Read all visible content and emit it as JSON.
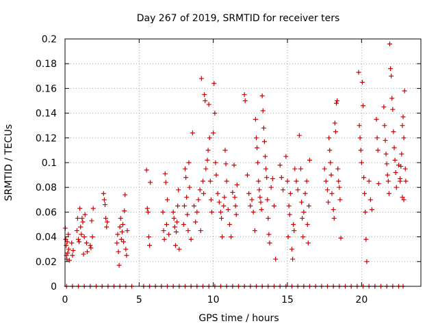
{
  "chart_data": {
    "type": "scatter",
    "title": "Day 267 of 2019, SRMTID for receiver ters",
    "xlabel": "GPS time / hours",
    "ylabel": "SRMTID / TECUs",
    "xlim": [
      0,
      24
    ],
    "ylim": [
      0,
      0.2
    ],
    "x_ticks": [
      0,
      5,
      10,
      15,
      20
    ],
    "x_tick_labels": [
      "0",
      "5",
      "10",
      "15",
      "20"
    ],
    "y_ticks": [
      0,
      0.02,
      0.04,
      0.06,
      0.08,
      0.1,
      0.12,
      0.14,
      0.16,
      0.18,
      0.2
    ],
    "y_tick_labels": [
      "0",
      "0.02",
      "0.04",
      "0.06",
      "0.08",
      "0.1",
      "0.12",
      "0.14",
      "0.16",
      "0.18",
      "0.2"
    ],
    "grid": true,
    "grid_style": "dotted",
    "marker": "+",
    "marker_color": "#cc0000",
    "series": [
      {
        "points": [
          [
            0.02,
            0.047
          ],
          [
            0.05,
            0.038
          ],
          [
            0.08,
            0.033
          ],
          [
            0.1,
            0.025
          ],
          [
            0.12,
            0.022
          ],
          [
            0.15,
            0.036
          ],
          [
            0.18,
            0.027
          ],
          [
            0.22,
            0.042
          ],
          [
            0.25,
            0.03
          ],
          [
            0.3,
            0.021
          ],
          [
            0.45,
            0.035
          ],
          [
            0.5,
            0.025
          ],
          [
            0.55,
            0.029
          ],
          [
            0.8,
            0.045
          ],
          [
            0.85,
            0.055
          ],
          [
            0.9,
            0.038
          ],
          [
            0.95,
            0.036
          ],
          [
            1.0,
            0.063
          ],
          [
            1.05,
            0.048
          ],
          [
            1.1,
            0.042
          ],
          [
            1.15,
            0.055
          ],
          [
            1.2,
            0.052
          ],
          [
            1.25,
            0.026
          ],
          [
            1.3,
            0.04
          ],
          [
            1.35,
            0.058
          ],
          [
            1.45,
            0.035
          ],
          [
            1.5,
            0.028
          ],
          [
            1.7,
            0.033
          ],
          [
            1.75,
            0.031
          ],
          [
            1.8,
            0.053
          ],
          [
            1.85,
            0.04
          ],
          [
            1.9,
            0.063
          ],
          [
            2.6,
            0.075
          ],
          [
            2.65,
            0.07
          ],
          [
            2.7,
            0.066
          ],
          [
            2.75,
            0.055
          ],
          [
            2.8,
            0.048
          ],
          [
            2.85,
            0.052
          ],
          [
            3.5,
            0.035
          ],
          [
            3.55,
            0.042
          ],
          [
            3.6,
            0.028
          ],
          [
            3.65,
            0.017
          ],
          [
            3.7,
            0.048
          ],
          [
            3.75,
            0.055
          ],
          [
            3.8,
            0.038
          ],
          [
            3.85,
            0.044
          ],
          [
            3.9,
            0.05
          ],
          [
            3.95,
            0.036
          ],
          [
            4.0,
            0.061
          ],
          [
            4.05,
            0.074
          ],
          [
            4.1,
            0.03
          ],
          [
            4.15,
            0.025
          ],
          [
            4.2,
            0.045
          ],
          [
            5.5,
            0.094
          ],
          [
            5.55,
            0.063
          ],
          [
            5.6,
            0.06
          ],
          [
            5.65,
            0.04
          ],
          [
            5.7,
            0.033
          ],
          [
            5.75,
            0.084
          ],
          [
            6.6,
            0.06
          ],
          [
            6.65,
            0.045
          ],
          [
            6.7,
            0.038
          ],
          [
            6.75,
            0.091
          ],
          [
            6.8,
            0.084
          ],
          [
            6.85,
            0.05
          ],
          [
            6.9,
            0.07
          ],
          [
            7.0,
            0.042
          ],
          [
            7.3,
            0.06
          ],
          [
            7.35,
            0.055
          ],
          [
            7.4,
            0.048
          ],
          [
            7.45,
            0.033
          ],
          [
            7.5,
            0.044
          ],
          [
            7.55,
            0.052
          ],
          [
            7.6,
            0.065
          ],
          [
            7.65,
            0.078
          ],
          [
            7.7,
            0.03
          ],
          [
            8.0,
            0.05
          ],
          [
            8.05,
            0.065
          ],
          [
            8.1,
            0.095
          ],
          [
            8.15,
            0.088
          ],
          [
            8.2,
            0.072
          ],
          [
            8.25,
            0.058
          ],
          [
            8.3,
            0.045
          ],
          [
            8.35,
            0.1
          ],
          [
            8.4,
            0.08
          ],
          [
            8.5,
            0.038
          ],
          [
            8.6,
            0.124
          ],
          [
            8.7,
            0.065
          ],
          [
            8.8,
            0.052
          ],
          [
            8.9,
            0.06
          ],
          [
            9.0,
            0.07
          ],
          [
            9.1,
            0.078
          ],
          [
            9.15,
            0.045
          ],
          [
            9.2,
            0.168
          ],
          [
            9.3,
            0.085
          ],
          [
            9.35,
            0.075
          ],
          [
            9.4,
            0.155
          ],
          [
            9.45,
            0.15
          ],
          [
            9.5,
            0.095
          ],
          [
            9.6,
            0.102
          ],
          [
            9.65,
            0.11
          ],
          [
            9.7,
            0.147
          ],
          [
            9.75,
            0.12
          ],
          [
            9.8,
            0.085
          ],
          [
            9.85,
            0.07
          ],
          [
            9.9,
            0.06
          ],
          [
            10.0,
            0.124
          ],
          [
            10.05,
            0.164
          ],
          [
            10.1,
            0.14
          ],
          [
            10.15,
            0.1
          ],
          [
            10.2,
            0.09
          ],
          [
            10.3,
            0.075
          ],
          [
            10.4,
            0.068
          ],
          [
            10.5,
            0.06
          ],
          [
            10.55,
            0.055
          ],
          [
            10.6,
            0.04
          ],
          [
            10.7,
            0.065
          ],
          [
            10.75,
            0.072
          ],
          [
            10.8,
            0.11
          ],
          [
            10.85,
            0.099
          ],
          [
            10.9,
            0.085
          ],
          [
            11.0,
            0.062
          ],
          [
            11.1,
            0.05
          ],
          [
            11.2,
            0.04
          ],
          [
            11.3,
            0.076
          ],
          [
            11.4,
            0.098
          ],
          [
            11.45,
            0.072
          ],
          [
            11.5,
            0.065
          ],
          [
            11.55,
            0.058
          ],
          [
            11.6,
            0.082
          ],
          [
            12.1,
            0.155
          ],
          [
            12.15,
            0.15
          ],
          [
            12.3,
            0.09
          ],
          [
            12.4,
            0.075
          ],
          [
            12.5,
            0.065
          ],
          [
            12.6,
            0.07
          ],
          [
            12.7,
            0.06
          ],
          [
            12.8,
            0.045
          ],
          [
            12.85,
            0.135
          ],
          [
            12.9,
            0.12
          ],
          [
            12.95,
            0.112
          ],
          [
            13.0,
            0.1
          ],
          [
            13.05,
            0.085
          ],
          [
            13.1,
            0.078
          ],
          [
            13.15,
            0.072
          ],
          [
            13.2,
            0.068
          ],
          [
            13.25,
            0.062
          ],
          [
            13.3,
            0.154
          ],
          [
            13.35,
            0.142
          ],
          [
            13.4,
            0.128
          ],
          [
            13.45,
            0.117
          ],
          [
            13.5,
            0.105
          ],
          [
            13.55,
            0.095
          ],
          [
            13.6,
            0.088
          ],
          [
            13.65,
            0.07
          ],
          [
            13.7,
            0.055
          ],
          [
            13.75,
            0.042
          ],
          [
            13.8,
            0.035
          ],
          [
            13.9,
            0.08
          ],
          [
            14.0,
            0.087
          ],
          [
            14.1,
            0.065
          ],
          [
            14.2,
            0.022
          ],
          [
            14.5,
            0.098
          ],
          [
            14.6,
            0.088
          ],
          [
            14.7,
            0.078
          ],
          [
            14.9,
            0.105
          ],
          [
            15.0,
            0.085
          ],
          [
            15.05,
            0.04
          ],
          [
            15.1,
            0.065
          ],
          [
            15.15,
            0.058
          ],
          [
            15.2,
            0.075
          ],
          [
            15.3,
            0.03
          ],
          [
            15.35,
            0.022
          ],
          [
            15.4,
            0.05
          ],
          [
            15.45,
            0.045
          ],
          [
            15.5,
            0.095
          ],
          [
            15.6,
            0.085
          ],
          [
            15.7,
            0.078
          ],
          [
            15.8,
            0.122
          ],
          [
            15.9,
            0.095
          ],
          [
            15.95,
            0.068
          ],
          [
            16.0,
            0.055
          ],
          [
            16.05,
            0.04
          ],
          [
            16.1,
            0.06
          ],
          [
            16.2,
            0.075
          ],
          [
            16.3,
            0.085
          ],
          [
            16.35,
            0.05
          ],
          [
            16.4,
            0.035
          ],
          [
            16.45,
            0.065
          ],
          [
            16.5,
            0.102
          ],
          [
            17.5,
            0.095
          ],
          [
            17.6,
            0.085
          ],
          [
            17.7,
            0.078
          ],
          [
            17.75,
            0.068
          ],
          [
            17.8,
            0.12
          ],
          [
            17.85,
            0.11
          ],
          [
            17.9,
            0.1
          ],
          [
            17.95,
            0.09
          ],
          [
            18.0,
            0.075
          ],
          [
            18.1,
            0.062
          ],
          [
            18.15,
            0.055
          ],
          [
            18.2,
            0.132
          ],
          [
            18.25,
            0.125
          ],
          [
            18.3,
            0.148
          ],
          [
            18.35,
            0.15
          ],
          [
            18.4,
            0.095
          ],
          [
            18.45,
            0.085
          ],
          [
            18.5,
            0.08
          ],
          [
            18.55,
            0.07
          ],
          [
            18.6,
            0.039
          ],
          [
            19.8,
            0.173
          ],
          [
            19.85,
            0.13
          ],
          [
            19.9,
            0.12
          ],
          [
            19.95,
            0.11
          ],
          [
            20.0,
            0.1
          ],
          [
            20.05,
            0.165
          ],
          [
            20.1,
            0.146
          ],
          [
            20.15,
            0.088
          ],
          [
            20.2,
            0.075
          ],
          [
            20.25,
            0.06
          ],
          [
            20.3,
            0.038
          ],
          [
            20.35,
            0.02
          ],
          [
            20.5,
            0.085
          ],
          [
            20.6,
            0.07
          ],
          [
            20.7,
            0.062
          ],
          [
            21.0,
            0.135
          ],
          [
            21.05,
            0.12
          ],
          [
            21.1,
            0.11
          ],
          [
            21.15,
            0.083
          ],
          [
            21.5,
            0.145
          ],
          [
            21.55,
            0.13
          ],
          [
            21.6,
            0.118
          ],
          [
            21.65,
            0.107
          ],
          [
            21.7,
            0.099
          ],
          [
            21.75,
            0.09
          ],
          [
            21.8,
            0.085
          ],
          [
            21.85,
            0.075
          ],
          [
            21.9,
            0.196
          ],
          [
            21.95,
            0.176
          ],
          [
            22.0,
            0.17
          ],
          [
            22.05,
            0.152
          ],
          [
            22.1,
            0.143
          ],
          [
            22.15,
            0.125
          ],
          [
            22.2,
            0.112
          ],
          [
            22.25,
            0.102
          ],
          [
            22.3,
            0.092
          ],
          [
            22.35,
            0.08
          ],
          [
            22.6,
            0.087
          ],
          [
            22.65,
            0.097
          ],
          [
            22.7,
            0.107
          ],
          [
            22.75,
            0.13
          ],
          [
            22.8,
            0.137
          ],
          [
            22.85,
            0.12
          ],
          [
            22.9,
            0.158
          ],
          [
            22.95,
            0.095
          ],
          [
            22.98,
            0.085
          ],
          [
            22.85,
            0.07
          ],
          [
            22.75,
            0.072
          ],
          [
            22.6,
            0.085
          ],
          [
            22.5,
            0.098
          ]
        ]
      },
      {
        "points": [
          [
            0.1,
            0
          ],
          [
            0.5,
            0
          ],
          [
            0.9,
            0
          ],
          [
            1.3,
            0
          ],
          [
            1.7,
            0
          ],
          [
            2.1,
            0
          ],
          [
            2.5,
            0
          ],
          [
            2.9,
            0
          ],
          [
            3.3,
            0
          ],
          [
            3.7,
            0
          ],
          [
            4.1,
            0
          ],
          [
            4.5,
            0
          ],
          [
            5.3,
            0
          ],
          [
            5.7,
            0
          ],
          [
            6.1,
            0
          ],
          [
            6.5,
            0
          ],
          [
            6.9,
            0
          ],
          [
            7.3,
            0
          ],
          [
            7.7,
            0
          ],
          [
            8.1,
            0
          ],
          [
            8.5,
            0
          ],
          [
            8.9,
            0
          ],
          [
            9.3,
            0
          ],
          [
            9.7,
            0
          ],
          [
            10.1,
            0
          ],
          [
            10.5,
            0
          ],
          [
            10.9,
            0
          ],
          [
            11.3,
            0
          ],
          [
            11.7,
            0
          ],
          [
            12.1,
            0
          ],
          [
            12.5,
            0
          ],
          [
            12.9,
            0
          ],
          [
            13.3,
            0
          ],
          [
            13.7,
            0
          ],
          [
            14.1,
            0
          ],
          [
            14.5,
            0
          ],
          [
            14.9,
            0
          ],
          [
            15.3,
            0
          ],
          [
            15.7,
            0
          ],
          [
            16.1,
            0
          ],
          [
            16.5,
            0
          ],
          [
            16.9,
            0
          ],
          [
            17.3,
            0
          ],
          [
            17.7,
            0
          ],
          [
            18.1,
            0
          ],
          [
            18.5,
            0
          ],
          [
            18.9,
            0
          ],
          [
            19.3,
            0
          ],
          [
            19.7,
            0
          ],
          [
            20.1,
            0
          ],
          [
            20.5,
            0
          ],
          [
            20.9,
            0
          ],
          [
            21.3,
            0
          ],
          [
            21.7,
            0
          ],
          [
            22.1,
            0
          ],
          [
            22.5,
            0
          ],
          [
            22.8,
            0
          ]
        ]
      }
    ]
  }
}
